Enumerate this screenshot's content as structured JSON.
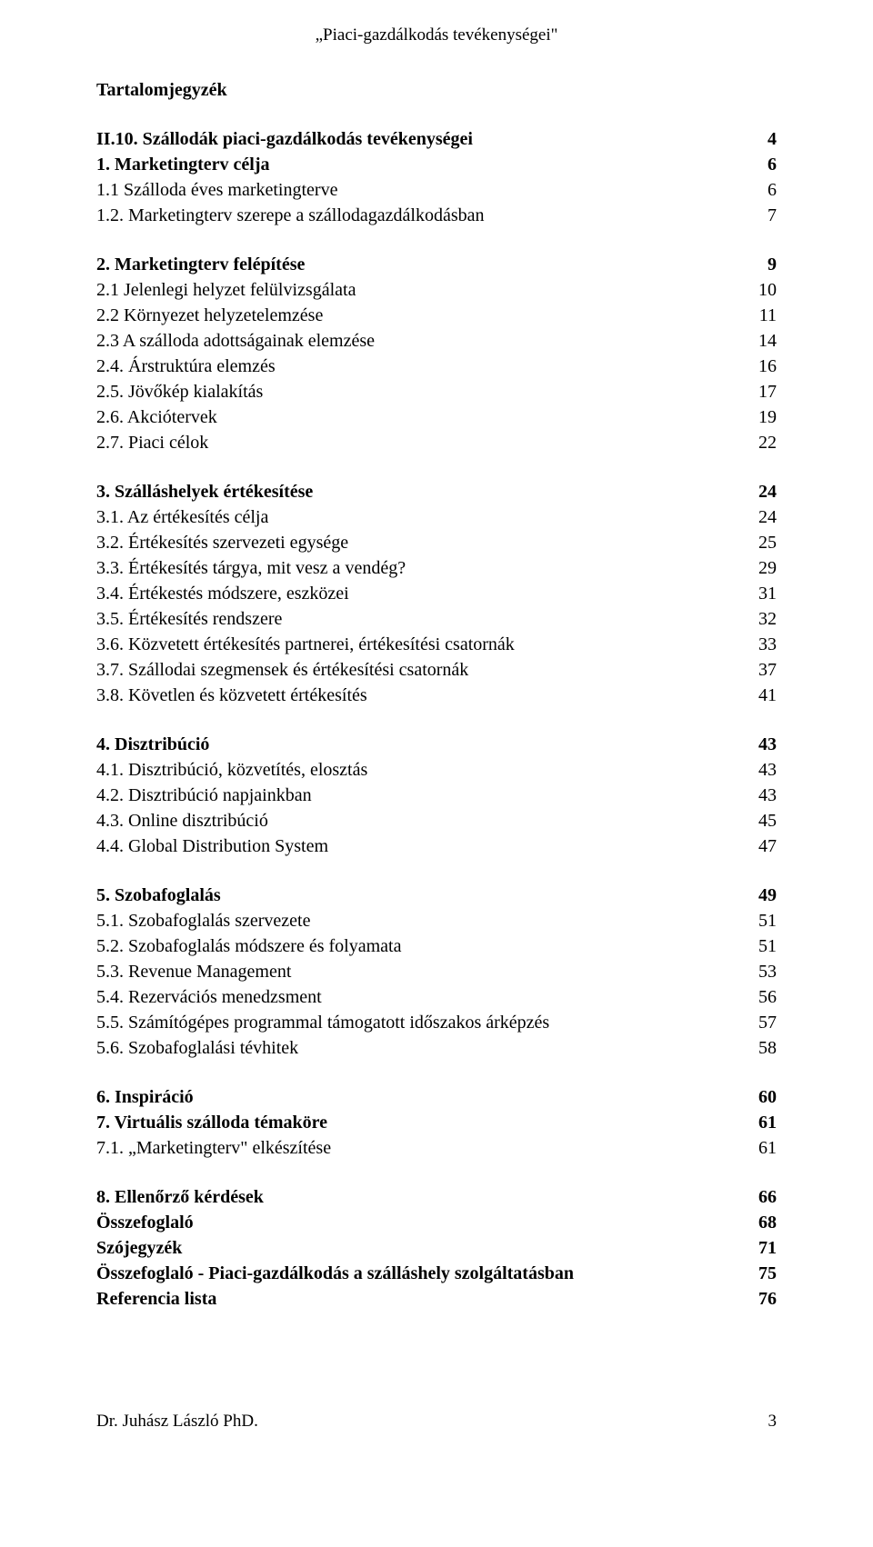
{
  "header": {
    "title": "„Piaci-gazdálkodás tevékenységei\""
  },
  "toc_heading": "Tartalomjegyzék",
  "sections": [
    {
      "entries": [
        {
          "label": "II.10. Szállodák piaci-gazdálkodás tevékenységei",
          "page": "4",
          "bold": true
        },
        {
          "label": "1. Marketingterv célja",
          "page": "6",
          "bold": true
        },
        {
          "label": "1.1 Szálloda éves marketingterve",
          "page": "6",
          "bold": false
        },
        {
          "label": "1.2. Marketingterv szerepe a szállodagazdálkodásban",
          "page": "7",
          "bold": false
        }
      ]
    },
    {
      "entries": [
        {
          "label": "2. Marketingterv felépítése",
          "page": "9",
          "bold": true
        },
        {
          "label": "2.1 Jelenlegi helyzet felülvizsgálata",
          "page": "10",
          "bold": false
        },
        {
          "label": "2.2 Környezet helyzetelemzése",
          "page": "11",
          "bold": false
        },
        {
          "label": "2.3 A szálloda adottságainak elemzése",
          "page": "14",
          "bold": false
        },
        {
          "label": "2.4. Árstruktúra elemzés",
          "page": "16",
          "bold": false
        },
        {
          "label": "2.5. Jövőkép kialakítás",
          "page": "17",
          "bold": false
        },
        {
          "label": "2.6. Akciótervek",
          "page": "19",
          "bold": false
        },
        {
          "label": "2.7. Piaci célok",
          "page": "22",
          "bold": false
        }
      ]
    },
    {
      "entries": [
        {
          "label": "3. Szálláshelyek értékesítése",
          "page": "24",
          "bold": true
        },
        {
          "label": "3.1. Az értékesítés célja",
          "page": "24",
          "bold": false
        },
        {
          "label": "3.2. Értékesítés szervezeti egysége",
          "page": "25",
          "bold": false
        },
        {
          "label": "3.3. Értékesítés tárgya, mit vesz a vendég?",
          "page": "29",
          "bold": false
        },
        {
          "label": "3.4. Értékestés módszere, eszközei",
          "page": "31",
          "bold": false
        },
        {
          "label": "3.5. Értékesítés rendszere",
          "page": "32",
          "bold": false
        },
        {
          "label": "3.6. Közvetett értékesítés partnerei, értékesítési csatornák",
          "page": "33",
          "bold": false
        },
        {
          "label": "3.7. Szállodai szegmensek és értékesítési csatornák",
          "page": "37",
          "bold": false
        },
        {
          "label": "3.8. Követlen és közvetett értékesítés",
          "page": "41",
          "bold": false
        }
      ]
    },
    {
      "entries": [
        {
          "label": "4. Disztribúció",
          "page": "43",
          "bold": true
        },
        {
          "label": "4.1. Disztribúció, közvetítés, elosztás",
          "page": "43",
          "bold": false
        },
        {
          "label": "4.2. Disztribúció napjainkban",
          "page": "43",
          "bold": false
        },
        {
          "label": "4.3. Online disztribúció",
          "page": "45",
          "bold": false
        },
        {
          "label": "4.4. Global Distribution System",
          "page": "47",
          "bold": false
        }
      ]
    },
    {
      "entries": [
        {
          "label": "5. Szobafoglalás",
          "page": "49",
          "bold": true
        },
        {
          "label": "5.1. Szobafoglalás szervezete",
          "page": "51",
          "bold": false
        },
        {
          "label": "5.2. Szobafoglalás módszere és folyamata",
          "page": "51",
          "bold": false
        },
        {
          "label": "5.3. Revenue Management",
          "page": "53",
          "bold": false
        },
        {
          "label": "5.4. Rezervációs menedzsment",
          "page": "56",
          "bold": false
        },
        {
          "label": "5.5. Számítógépes programmal támogatott időszakos árképzés",
          "page": "57",
          "bold": false
        },
        {
          "label": "5.6. Szobafoglalási tévhitek",
          "page": "58",
          "bold": false
        }
      ]
    },
    {
      "entries": [
        {
          "label": "6. Inspiráció",
          "page": "60",
          "bold": true
        },
        {
          "label": "7. Virtuális szálloda témaköre",
          "page": "61",
          "bold": true
        },
        {
          "label": "7.1. „Marketingterv\" elkészítése",
          "page": "61",
          "bold": false
        }
      ]
    },
    {
      "entries": [
        {
          "label": "8. Ellenőrző kérdések",
          "page": "66",
          "bold": true
        },
        {
          "label": "Összefoglaló",
          "page": "68",
          "bold": true
        },
        {
          "label": "Szójegyzék",
          "page": "71",
          "bold": true
        },
        {
          "label": "Összefoglaló - Piaci-gazdálkodás a szálláshely szolgáltatásban",
          "page": "75",
          "bold": true
        },
        {
          "label": "Referencia lista",
          "page": "76",
          "bold": true
        }
      ]
    }
  ],
  "footer": {
    "author": "Dr. Juhász László PhD.",
    "page_number": "3"
  }
}
